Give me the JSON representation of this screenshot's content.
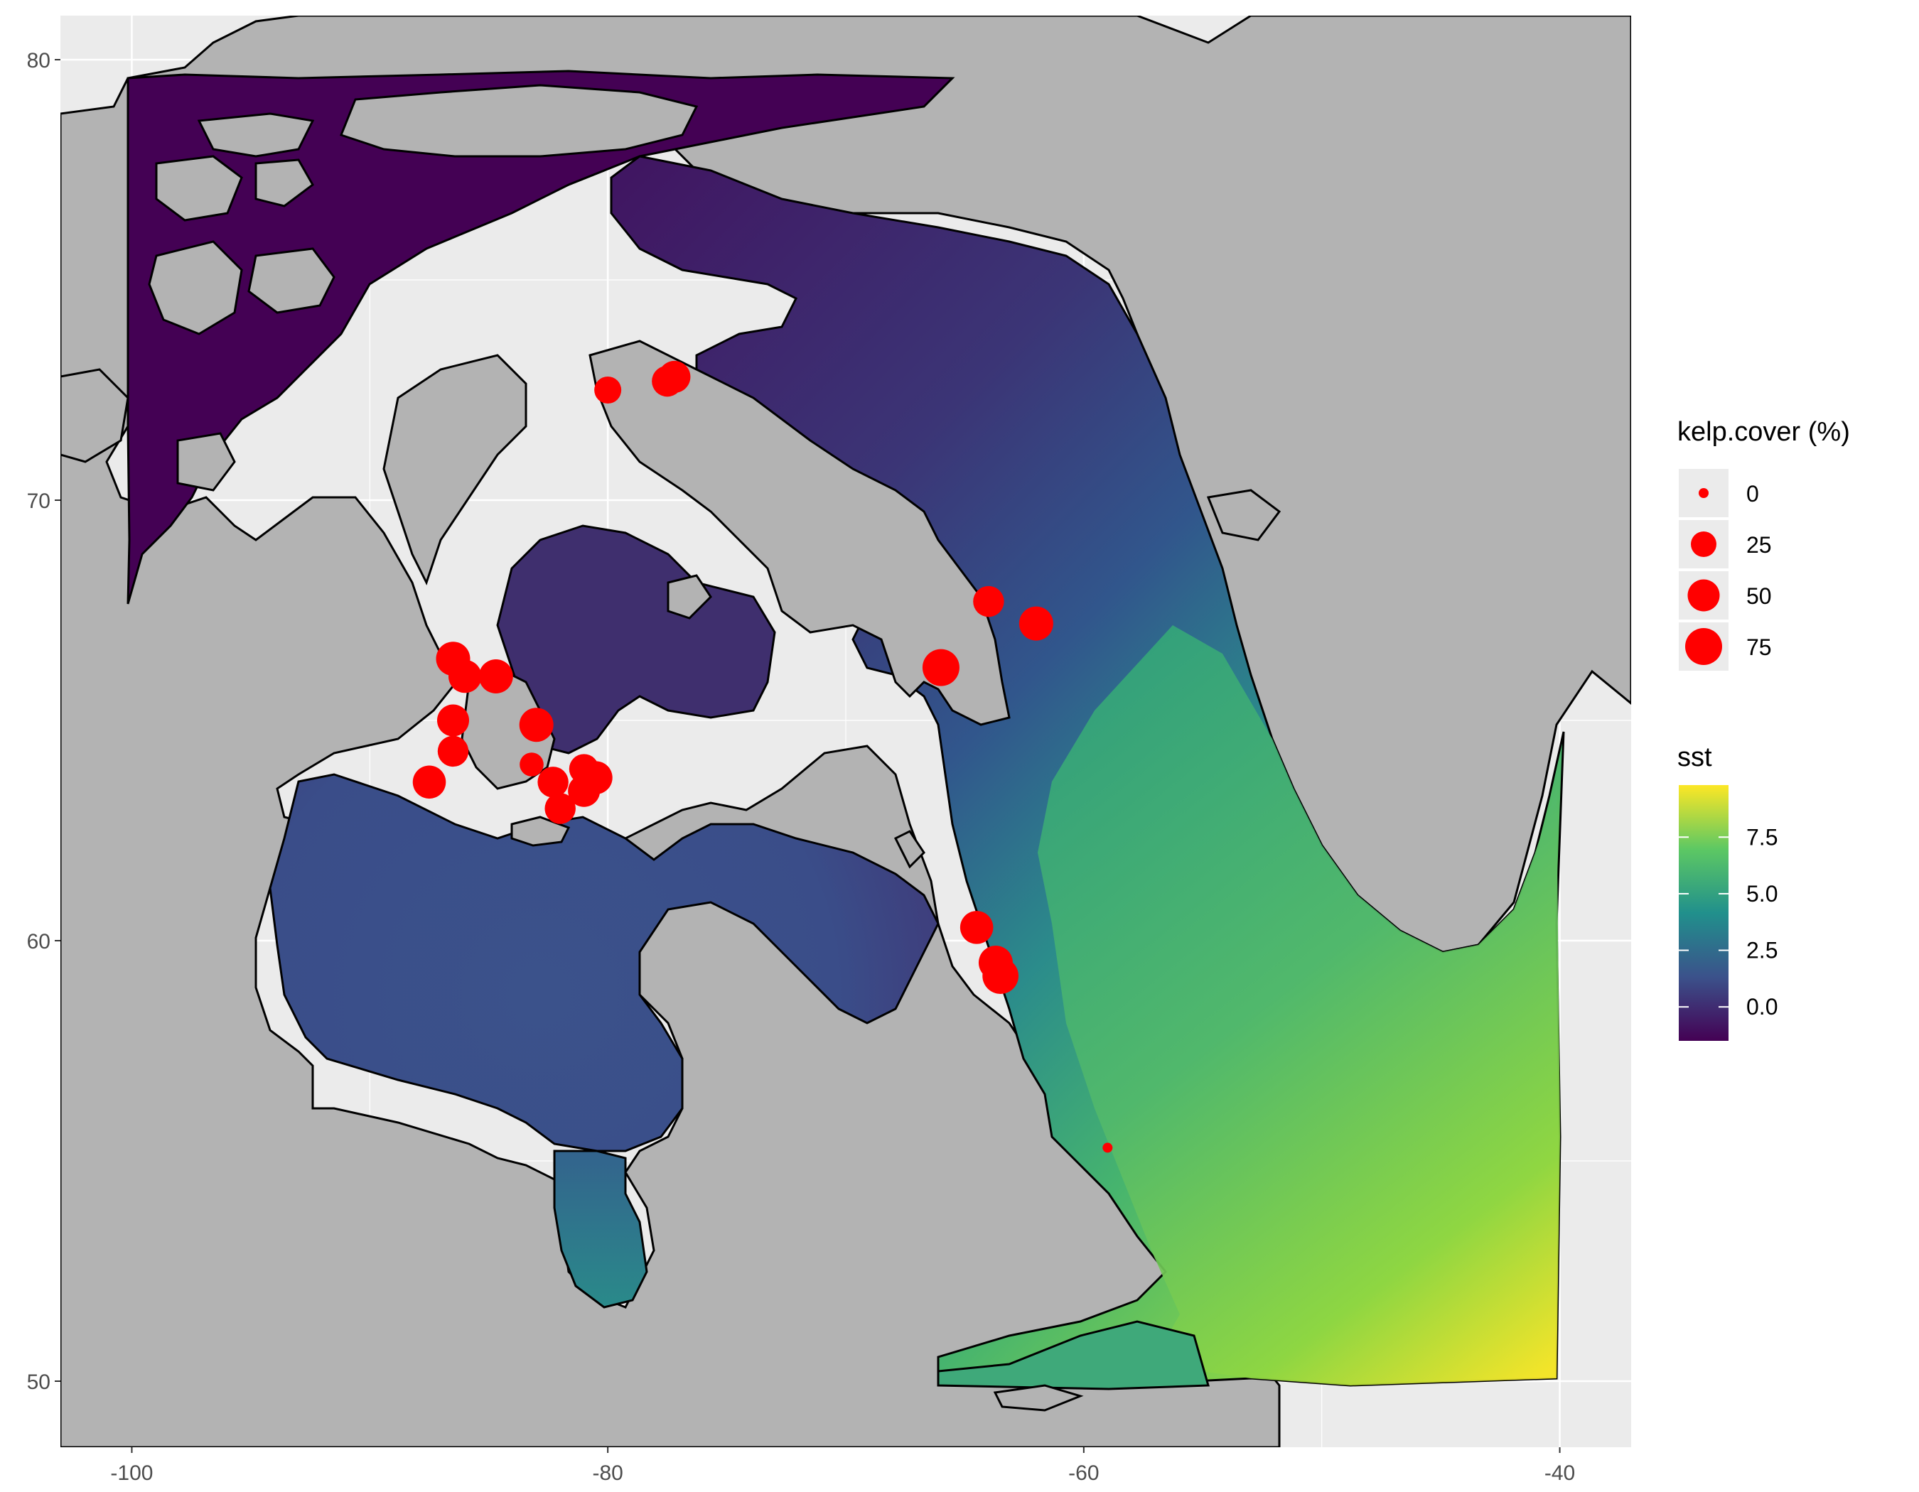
{
  "map": {
    "x_axis": {
      "ticks": [
        {
          "value": -100,
          "label": "-100"
        },
        {
          "value": -80,
          "label": "-80"
        },
        {
          "value": -60,
          "label": "-60"
        },
        {
          "value": -40,
          "label": "-40"
        }
      ]
    },
    "y_axis": {
      "ticks": [
        {
          "value": 50,
          "label": "50"
        },
        {
          "value": 60,
          "label": "60"
        },
        {
          "value": 70,
          "label": "70"
        },
        {
          "value": 80,
          "label": "80"
        }
      ]
    },
    "colors": {
      "panel_background": "#ebebeb",
      "grid_line": "#ffffff",
      "land": "#b3b3b3",
      "coastline": "#000000",
      "kelp_point": "#ff0000",
      "sst_gradient": [
        "#440154",
        "#3b528b",
        "#21908c",
        "#5dc863",
        "#fde725"
      ]
    }
  },
  "legend_size": {
    "title": "kelp.cover  (%)",
    "entries": [
      {
        "label": "0",
        "value": 0
      },
      {
        "label": "25",
        "value": 25
      },
      {
        "label": "50",
        "value": 50
      },
      {
        "label": "75",
        "value": 75
      }
    ]
  },
  "legend_color": {
    "title": "sst",
    "labels": [
      "7.5",
      "5.0",
      "2.5",
      "0.0"
    ]
  },
  "chart_data": {
    "type": "scatter",
    "x_label": "",
    "y_label": "",
    "xlim": [
      -103,
      -37
    ],
    "ylim": [
      48.5,
      81
    ],
    "size_variable": "kelp.cover (%)",
    "color_variable": "sst",
    "color_range": [
      -1.5,
      9.8
    ],
    "kelp_sites": [
      {
        "lon": -80.0,
        "lat": 72.5,
        "kelp_cover": 30
      },
      {
        "lon": -77.5,
        "lat": 72.7,
        "kelp_cover": 45
      },
      {
        "lon": -77.2,
        "lat": 72.8,
        "kelp_cover": 50
      },
      {
        "lon": -64.0,
        "lat": 67.7,
        "kelp_cover": 45
      },
      {
        "lon": -62.0,
        "lat": 67.2,
        "kelp_cover": 60
      },
      {
        "lon": -66.0,
        "lat": 66.2,
        "kelp_cover": 75
      },
      {
        "lon": -86.5,
        "lat": 66.4,
        "kelp_cover": 60
      },
      {
        "lon": -86.0,
        "lat": 66.0,
        "kelp_cover": 55
      },
      {
        "lon": -84.7,
        "lat": 66.0,
        "kelp_cover": 60
      },
      {
        "lon": -86.5,
        "lat": 65.0,
        "kelp_cover": 50
      },
      {
        "lon": -86.5,
        "lat": 64.3,
        "kelp_cover": 45
      },
      {
        "lon": -83.0,
        "lat": 64.9,
        "kelp_cover": 60
      },
      {
        "lon": -83.2,
        "lat": 64.0,
        "kelp_cover": 20
      },
      {
        "lon": -81.0,
        "lat": 63.9,
        "kelp_cover": 40
      },
      {
        "lon": -82.3,
        "lat": 63.6,
        "kelp_cover": 45
      },
      {
        "lon": -80.5,
        "lat": 63.7,
        "kelp_cover": 55
      },
      {
        "lon": -81.0,
        "lat": 63.4,
        "kelp_cover": 50
      },
      {
        "lon": -87.5,
        "lat": 63.6,
        "kelp_cover": 55
      },
      {
        "lon": -82.0,
        "lat": 63.0,
        "kelp_cover": 45
      },
      {
        "lon": -64.5,
        "lat": 60.3,
        "kelp_cover": 55
      },
      {
        "lon": -63.7,
        "lat": 59.5,
        "kelp_cover": 60
      },
      {
        "lon": -63.5,
        "lat": 59.2,
        "kelp_cover": 70
      },
      {
        "lon": -59.0,
        "lat": 55.3,
        "kelp_cover": 0
      }
    ]
  }
}
